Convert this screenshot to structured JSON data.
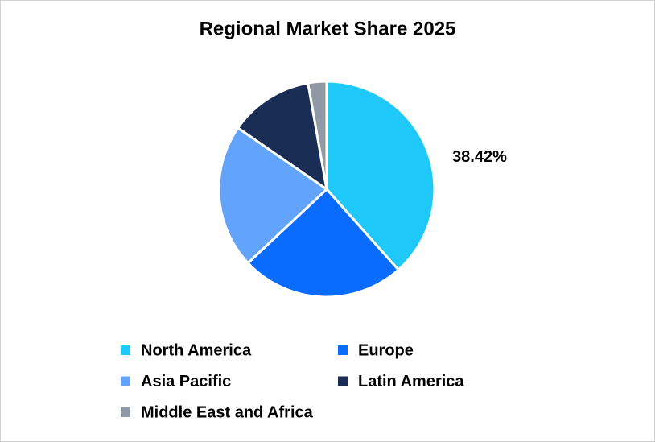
{
  "chart_data": {
    "type": "pie",
    "title": "Regional Market Share 2025",
    "categories": [
      "North America",
      "Europe",
      "Asia Pacific",
      "Latin America",
      "Middle East and Africa"
    ],
    "values": [
      38.42,
      24.6,
      21.6,
      12.6,
      2.78
    ],
    "value_labels": [
      "38.42%",
      null,
      null,
      null,
      null
    ],
    "colors": [
      "#1ec8f8",
      "#0a6cff",
      "#62a4fc",
      "#1a2e55",
      "#9198a6"
    ],
    "legend": "bottom"
  }
}
